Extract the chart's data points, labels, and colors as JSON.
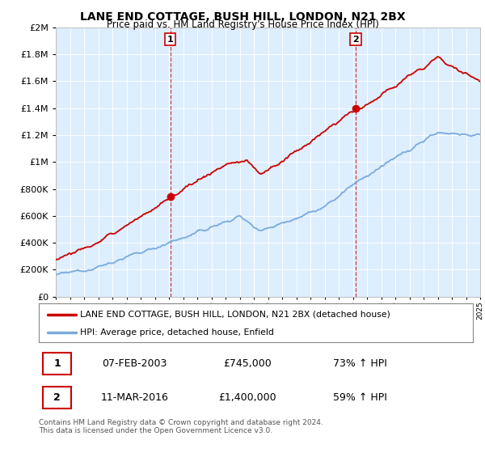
{
  "title": "LANE END COTTAGE, BUSH HILL, LONDON, N21 2BX",
  "subtitle": "Price paid vs. HM Land Registry's House Price Index (HPI)",
  "legend_line1": "LANE END COTTAGE, BUSH HILL, LONDON, N21 2BX (detached house)",
  "legend_line2": "HPI: Average price, detached house, Enfield",
  "sale1_date": "07-FEB-2003",
  "sale1_price": "£745,000",
  "sale1_hpi": "73% ↑ HPI",
  "sale2_date": "11-MAR-2016",
  "sale2_price": "£1,400,000",
  "sale2_hpi": "59% ↑ HPI",
  "footer": "Contains HM Land Registry data © Crown copyright and database right 2024.\nThis data is licensed under the Open Government Licence v3.0.",
  "red_color": "#cc0000",
  "blue_color": "#7aaadd",
  "sale1_year": 2003.1,
  "sale1_value": 745000,
  "sale2_year": 2016.2,
  "sale2_value": 1400000,
  "ylim_max": 2000000,
  "xlim_start": 1995,
  "xlim_end": 2025,
  "fig_bg": "#ffffff",
  "plot_bg": "#ddeeff"
}
